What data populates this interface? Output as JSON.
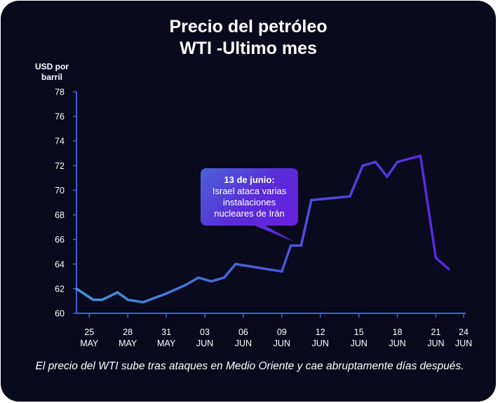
{
  "chart_data": {
    "type": "line",
    "title": [
      "Precio del petróleo",
      "WTI -Ultimo mes"
    ],
    "ylabel": [
      "USD por",
      "barril"
    ],
    "ylim": [
      60,
      78
    ],
    "yticks": [
      60,
      62,
      64,
      66,
      68,
      70,
      72,
      74,
      76,
      78
    ],
    "xlim": [
      24,
      54
    ],
    "xticks": [
      {
        "x": 25,
        "lines": [
          "25",
          "MAY"
        ]
      },
      {
        "x": 28,
        "lines": [
          "28",
          "MAY"
        ]
      },
      {
        "x": 31,
        "lines": [
          "31",
          "MAY"
        ]
      },
      {
        "x": 34,
        "lines": [
          "03",
          "JUN"
        ]
      },
      {
        "x": 37,
        "lines": [
          "06",
          "JUN"
        ]
      },
      {
        "x": 40,
        "lines": [
          "09",
          "JUN"
        ]
      },
      {
        "x": 43,
        "lines": [
          "12",
          "JUN"
        ]
      },
      {
        "x": 46,
        "lines": [
          "15",
          "JUN"
        ]
      },
      {
        "x": 49,
        "lines": [
          "18",
          "JUN"
        ]
      },
      {
        "x": 52,
        "lines": [
          "21",
          "JUN"
        ]
      },
      {
        "x": 55,
        "lines": [
          "24",
          "JUN"
        ]
      }
    ],
    "points": [
      [
        24,
        62.0
      ],
      [
        25.3,
        61.1
      ],
      [
        26.0,
        61.1
      ],
      [
        27.2,
        61.7
      ],
      [
        28.0,
        61.1
      ],
      [
        29.2,
        60.9
      ],
      [
        31.0,
        61.6
      ],
      [
        32.5,
        62.3
      ],
      [
        33.5,
        62.9
      ],
      [
        34.5,
        62.6
      ],
      [
        35.5,
        62.9
      ],
      [
        36.4,
        64.0
      ],
      [
        40.0,
        63.4
      ],
      [
        40.7,
        65.5
      ],
      [
        41.5,
        65.5
      ],
      [
        42.3,
        69.2
      ],
      [
        45.3,
        69.5
      ],
      [
        46.3,
        72.0
      ],
      [
        47.3,
        72.3
      ],
      [
        48.2,
        71.1
      ],
      [
        49.0,
        72.3
      ],
      [
        50.8,
        72.8
      ],
      [
        52.0,
        64.5
      ],
      [
        53.0,
        63.6
      ]
    ],
    "annotation": {
      "title": "13 de junio:",
      "lines": [
        "Israel ataca varias",
        "instalaciones",
        "nucleares de Irán"
      ],
      "x": 41.0,
      "y": 65.8
    },
    "caption": "El precio del WTI sube tras ataques en Medio Oriente y cae abruptamente días después.",
    "colors": {
      "background": "#090a1d",
      "line_start": "#3f97d8",
      "line_mid": "#4a55dc",
      "line_end": "#5b1fe0",
      "axis": "#3e5fd6"
    }
  }
}
